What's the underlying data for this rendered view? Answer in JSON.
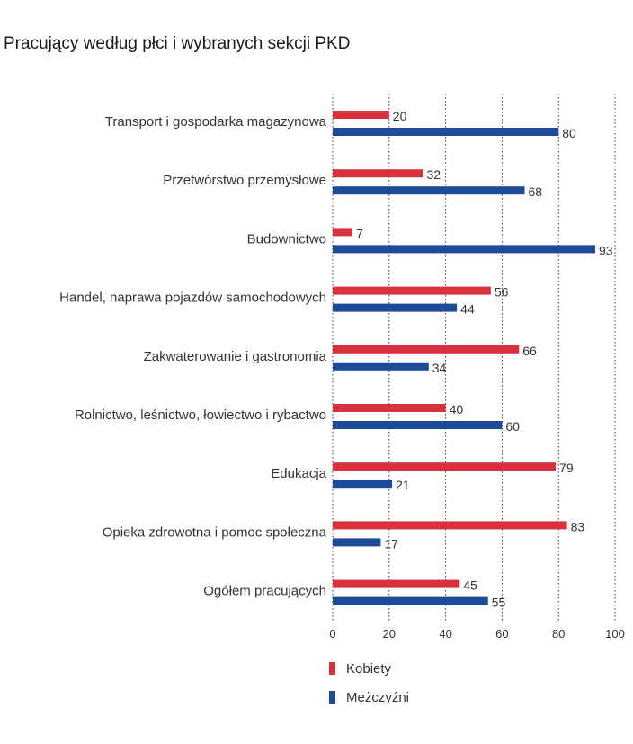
{
  "chart_data": {
    "type": "bar",
    "orientation": "horizontal",
    "title": "Pracujący według płci i wybranych sekcji PKD",
    "categories": [
      "Transport i gospodarka magazynowa",
      "Przetwórstwo przemysłowe",
      "Budownictwo",
      "Handel, naprawa pojazdów samochodowych",
      "Zakwaterowanie i gastronomia",
      "Rolnictwo, leśnictwo, łowiectwo i rybactwo",
      "Edukacja",
      "Opieka zdrowotna i pomoc społeczna",
      "Ogółem pracujących"
    ],
    "series": [
      {
        "name": "Kobiety",
        "color": "#d9303e",
        "values": [
          20,
          32,
          7,
          56,
          66,
          40,
          79,
          83,
          45
        ]
      },
      {
        "name": "Mężczyźni",
        "color": "#1d4a99",
        "values": [
          80,
          68,
          93,
          44,
          34,
          60,
          21,
          17,
          55
        ]
      }
    ],
    "xlim": [
      0,
      100
    ],
    "xticks": [
      0,
      20,
      40,
      60,
      80,
      100
    ],
    "grid": "vertical-dotted",
    "legend": "bottom"
  }
}
